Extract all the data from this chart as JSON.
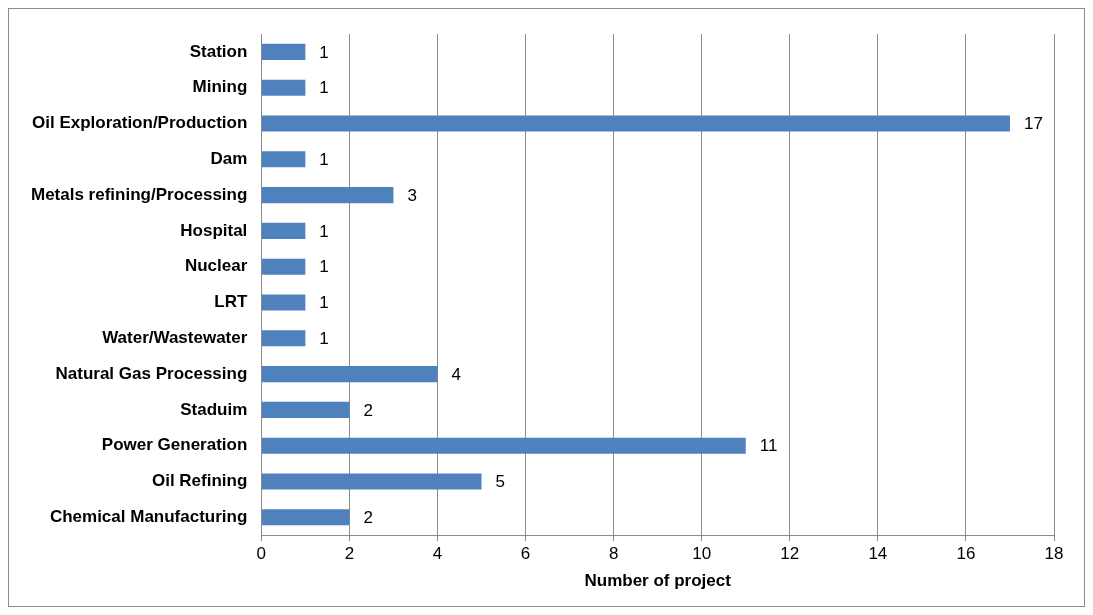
{
  "chart_data": {
    "type": "bar",
    "orientation": "horizontal",
    "xlabel": "Number of project",
    "categories": [
      "Station",
      "Mining",
      "Oil Exploration/Production",
      "Dam",
      "Metals refining/Processing",
      "Hospital",
      "Nuclear",
      "LRT",
      "Water/Wastewater",
      "Natural Gas Processing",
      "Staduim",
      "Power Generation",
      "Oil Refining",
      "Chemical Manufacturing"
    ],
    "values": [
      1,
      1,
      17,
      1,
      3,
      1,
      1,
      1,
      1,
      4,
      2,
      11,
      5,
      2
    ],
    "color": "#4f81bd",
    "xlim": [
      0,
      18
    ],
    "xticks": [
      0,
      2,
      4,
      6,
      8,
      10,
      12,
      14,
      16,
      18
    ],
    "grid": "x",
    "legend": false,
    "data_labels": true
  }
}
